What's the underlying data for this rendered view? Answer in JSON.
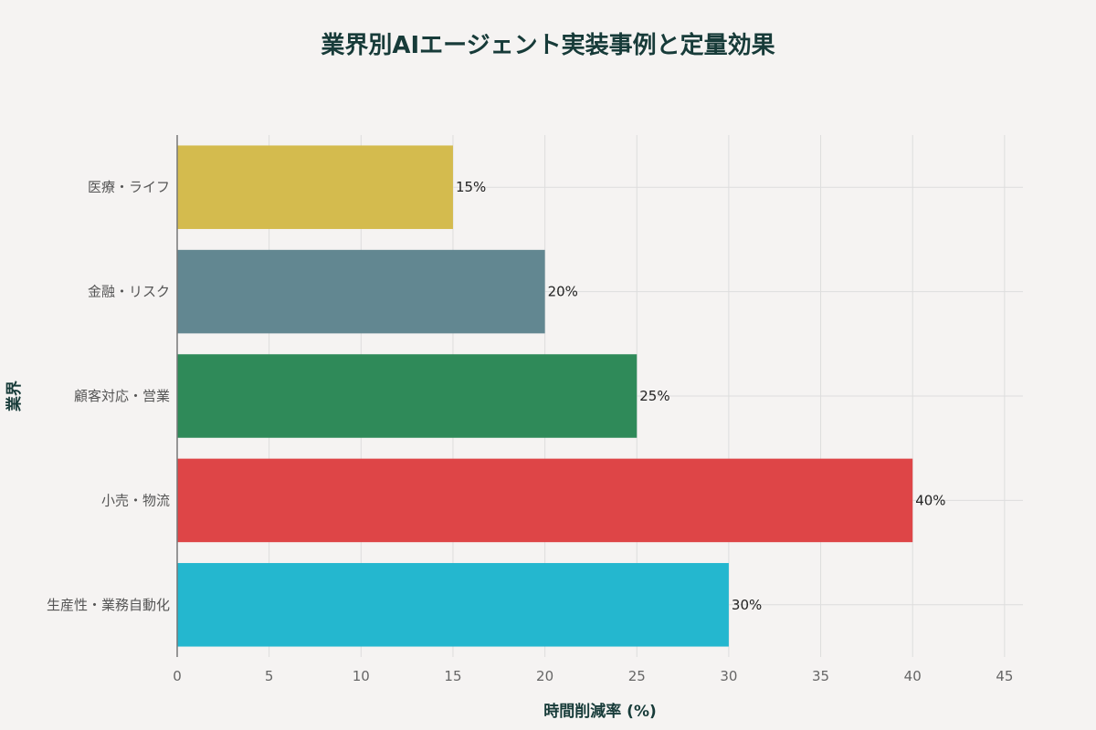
{
  "chart_data": {
    "type": "bar",
    "orientation": "horizontal",
    "title": "業界別AIエージェント実装事例と定量効果",
    "xlabel": "時間削減率 (%)",
    "ylabel": "業界",
    "xlim": [
      0,
      46
    ],
    "xticks": [
      0,
      5,
      10,
      15,
      20,
      25,
      30,
      35,
      40,
      45
    ],
    "grid": true,
    "categories": [
      "医療・ライフ",
      "金融・リスク",
      "顧客対応・営業",
      "小売・物流",
      "生産性・業務自動化"
    ],
    "values": [
      15,
      20,
      25,
      40,
      30
    ],
    "data_labels": [
      "15%",
      "20%",
      "25%",
      "40%",
      "30%"
    ],
    "colors": [
      "#d4bb4e",
      "#628791",
      "#2f8a59",
      "#de4547",
      "#24b7cf"
    ]
  }
}
